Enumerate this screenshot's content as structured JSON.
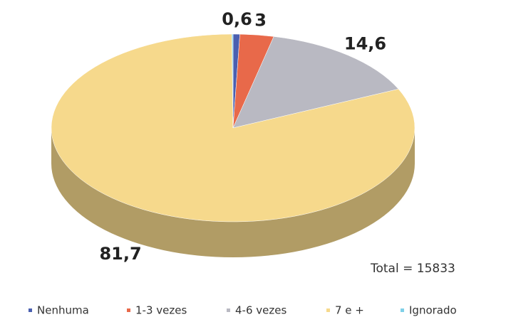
{
  "chart_data": {
    "type": "pie",
    "categories": [
      "Nenhuma",
      "1-3 vezes",
      "4-6 vezes",
      "7 e +",
      "Ignorado"
    ],
    "values": [
      0.6,
      3,
      14.6,
      81.7,
      0.1
    ],
    "value_labels": [
      "0,6",
      "3",
      "14,6",
      "81,7",
      null
    ],
    "colors": [
      "#4a5fb0",
      "#e8694a",
      "#b9b9c2",
      "#f6d98c",
      "#7fd0e8"
    ],
    "annotation": "Total = 15833",
    "legend": "bottom"
  }
}
